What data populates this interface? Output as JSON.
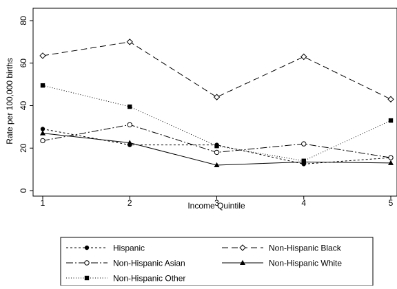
{
  "chart_data": {
    "type": "line",
    "title": "",
    "xlabel": "Income Quintile",
    "ylabel": "Rate per 100,000 births",
    "x": [
      1,
      2,
      3,
      4,
      5
    ],
    "xlim": [
      1,
      5
    ],
    "ylim": [
      0,
      80
    ],
    "yticks": [
      0,
      20,
      40,
      60,
      80
    ],
    "grid": false,
    "legend_position": "bottom",
    "series": [
      {
        "name": "Hispanic",
        "values": [
          29,
          21.5,
          21.5,
          12.5,
          15.5
        ],
        "line_style": "short-dash",
        "marker": "filled-circle"
      },
      {
        "name": "Non-Hispanic Black",
        "values": [
          63.5,
          70,
          44,
          63,
          43
        ],
        "line_style": "long-dash",
        "marker": "open-diamond"
      },
      {
        "name": "Non-Hispanic Asian",
        "values": [
          23.5,
          31,
          18,
          22,
          15.5
        ],
        "line_style": "dash-dot",
        "marker": "open-circle"
      },
      {
        "name": "Non-Hispanic White",
        "values": [
          27,
          22.5,
          12,
          13.5,
          13
        ],
        "line_style": "solid",
        "marker": "filled-triangle"
      },
      {
        "name": "Non-Hispanic Other",
        "values": [
          49.5,
          39.5,
          21,
          14,
          33
        ],
        "line_style": "dotted",
        "marker": "filled-square"
      }
    ]
  }
}
